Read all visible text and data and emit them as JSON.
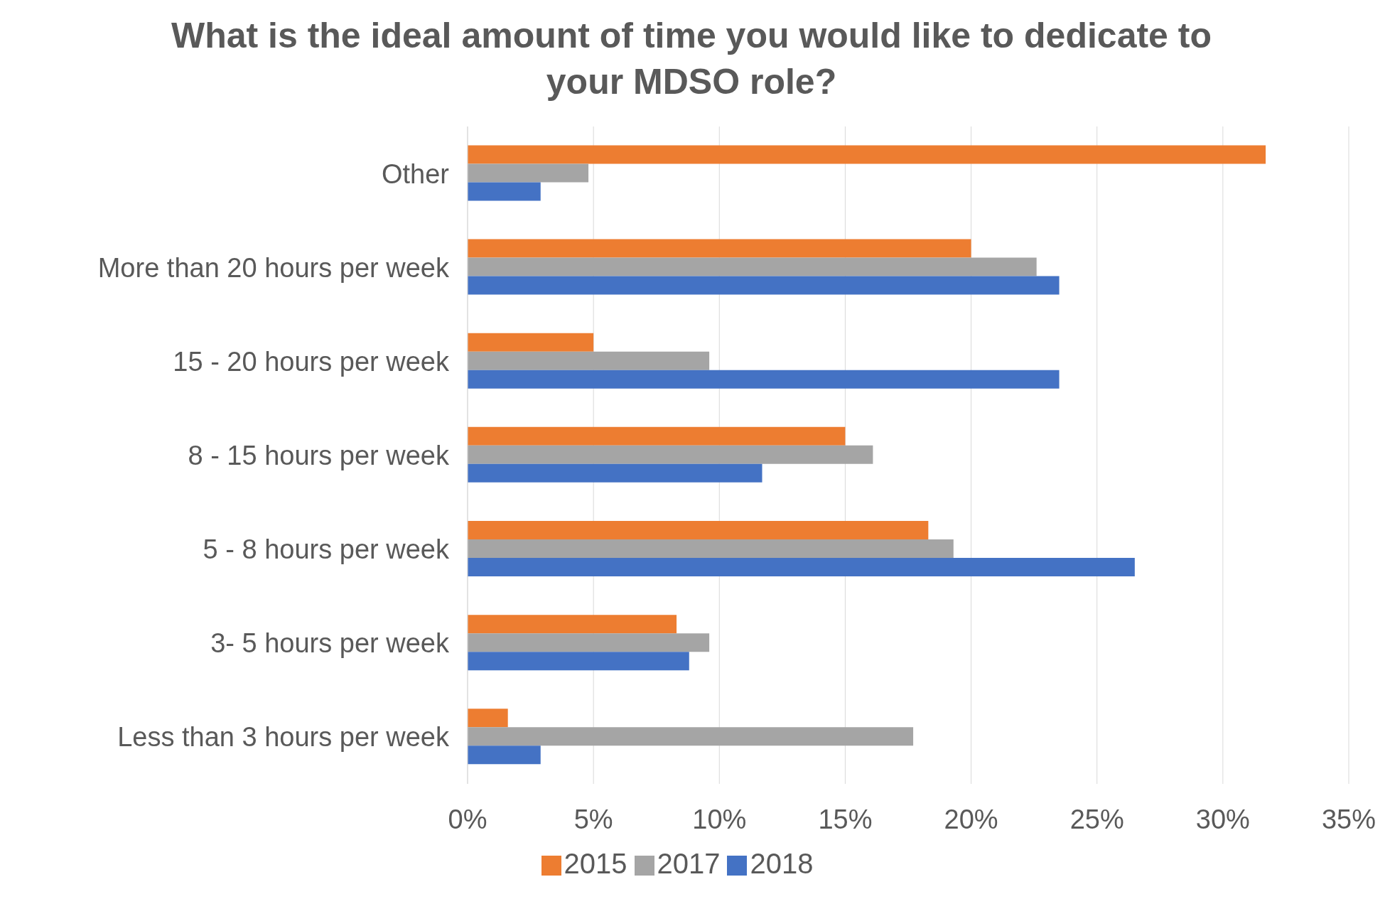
{
  "chart_data": {
    "type": "bar",
    "orientation": "horizontal",
    "title": "What is the ideal amount of time you would like to dedicate to your MDSO role?",
    "categories": [
      "Other",
      "More than 20 hours per week",
      "15 - 20 hours per week",
      "8 - 15 hours per week",
      "5 - 8 hours per week",
      "3- 5 hours per week",
      "Less than 3 hours per week"
    ],
    "series": [
      {
        "name": "2015",
        "color": "#ed7d31",
        "values": [
          31.7,
          20.0,
          5.0,
          15.0,
          18.3,
          8.3,
          1.6
        ]
      },
      {
        "name": "2017",
        "color": "#a5a5a5",
        "values": [
          4.8,
          22.6,
          9.6,
          16.1,
          19.3,
          9.6,
          17.7
        ]
      },
      {
        "name": "2018",
        "color": "#4472c4",
        "values": [
          2.9,
          23.5,
          23.5,
          11.7,
          26.5,
          8.8,
          2.9
        ]
      }
    ],
    "xlim": [
      0,
      35
    ],
    "xticks": [
      {
        "value": 0,
        "label": "0%"
      },
      {
        "value": 5,
        "label": "5%"
      },
      {
        "value": 10,
        "label": "10%"
      },
      {
        "value": 15,
        "label": "15%"
      },
      {
        "value": 20,
        "label": "20%"
      },
      {
        "value": 25,
        "label": "25%"
      },
      {
        "value": 30,
        "label": "30%"
      },
      {
        "value": 35,
        "label": "35%"
      }
    ],
    "grid": "x",
    "legend": "bottom"
  }
}
